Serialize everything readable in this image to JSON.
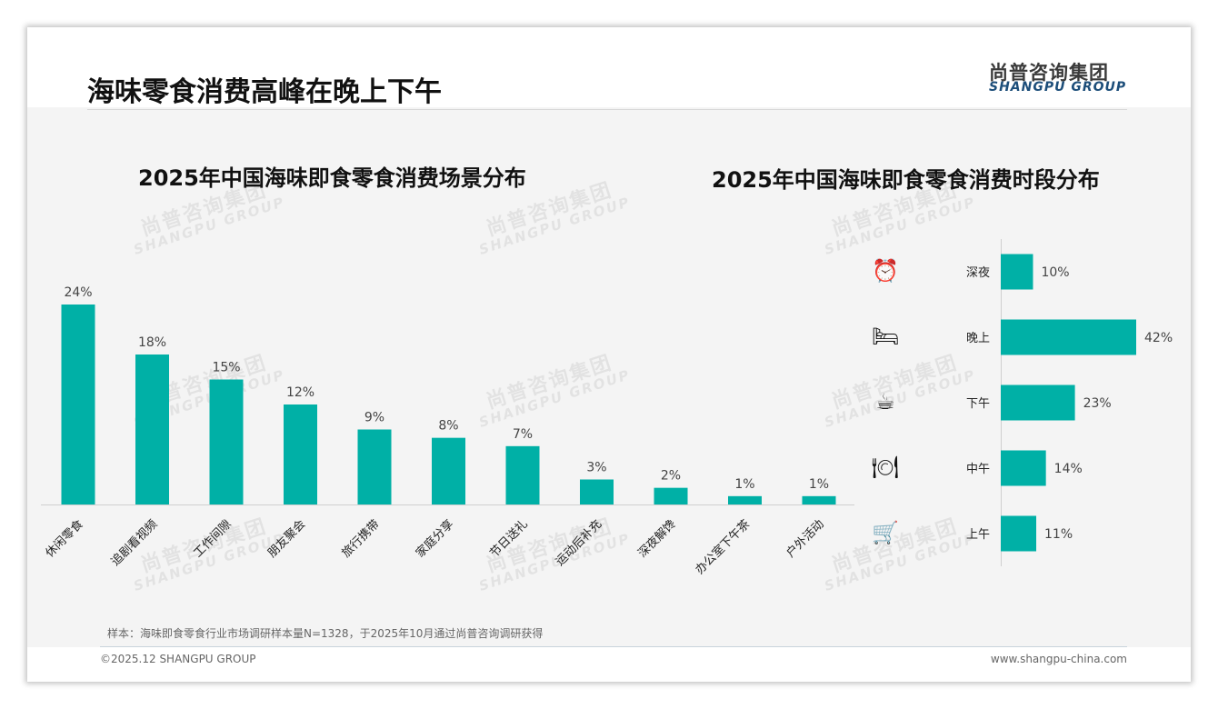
{
  "header": {
    "title": "海味零食消费高峰在晚上下午",
    "logo_cn": "尚普咨询集团",
    "logo_en": "SHANGPU GROUP"
  },
  "watermark": {
    "cn": "尚普咨询集团",
    "en": "SHANGPU GROUP"
  },
  "colors": {
    "bar": "#00b0a6"
  },
  "chart_data": [
    {
      "type": "bar",
      "title": "2025年中国海味即食零食消费场景分布",
      "categories": [
        "休闲零食",
        "追剧看视频",
        "工作间隙",
        "朋友聚会",
        "旅行携带",
        "家庭分享",
        "节日送礼",
        "运动后补充",
        "深夜解馋",
        "办公室下午茶",
        "户外活动"
      ],
      "values": [
        24,
        18,
        15,
        12,
        9,
        8,
        7,
        3,
        2,
        1,
        1
      ],
      "labels": [
        "24%",
        "18%",
        "15%",
        "12%",
        "9%",
        "8%",
        "7%",
        "3%",
        "2%",
        "1%",
        "1%"
      ],
      "unit": "%",
      "ylim": [
        0,
        24
      ],
      "grid": false
    },
    {
      "type": "bar",
      "orientation": "horizontal",
      "title": "2025年中国海味即食零食消费时段分布",
      "categories": [
        "深夜",
        "晚上",
        "下午",
        "中午",
        "上午"
      ],
      "icons": [
        "alarm-clock-icon",
        "bed-icon",
        "coffee-mug-icon",
        "plate-cutlery-icon",
        "shopping-cart-icon"
      ],
      "values": [
        10,
        42,
        23,
        14,
        11
      ],
      "labels": [
        "10%",
        "42%",
        "23%",
        "14%",
        "11%"
      ],
      "unit": "%",
      "xlim": [
        0,
        42
      ],
      "grid": false
    }
  ],
  "footer": {
    "note": "样本：海味即食零食行业市场调研样本量N=1328，于2025年10月通过尚普咨询调研获得",
    "copyright": "©2025.12 SHANGPU GROUP",
    "website": "www.shangpu-china.com"
  }
}
